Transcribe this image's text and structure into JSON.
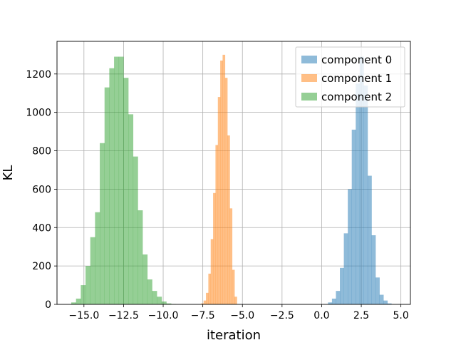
{
  "chart_data": {
    "type": "histogram",
    "title": "",
    "xlabel": "iteration",
    "ylabel": "KL",
    "xlim": [
      -16.7,
      5.6
    ],
    "ylim": [
      0,
      1370
    ],
    "grid": true,
    "legend_position": "top-right",
    "x_ticks": [
      -15.0,
      -12.5,
      -10.0,
      -7.5,
      -5.0,
      -2.5,
      0.0,
      2.5,
      5.0
    ],
    "x_tick_labels": [
      "−15.0",
      "−12.5",
      "−10.0",
      "−7.5",
      "−5.0",
      "−2.5",
      "0.0",
      "2.5",
      "5.0"
    ],
    "y_ticks": [
      0,
      200,
      400,
      600,
      800,
      1000,
      1200
    ],
    "y_tick_labels": [
      "0",
      "200",
      "400",
      "600",
      "800",
      "1000",
      "1200"
    ],
    "series": [
      {
        "name": "component 0",
        "color": "#1f77b4",
        "bins": [
          0.4,
          0.65,
          0.9,
          1.15,
          1.4,
          1.65,
          1.9,
          2.15,
          2.4,
          2.65,
          2.9,
          3.15,
          3.4,
          3.65,
          3.9,
          4.15,
          4.4
        ],
        "counts": [
          10,
          30,
          70,
          190,
          370,
          600,
          910,
          1150,
          1290,
          1140,
          670,
          360,
          140,
          50,
          20,
          5
        ]
      },
      {
        "name": "component 1",
        "color": "#ff7f0e",
        "bins": [
          -7.6,
          -7.45,
          -7.3,
          -7.15,
          -7.0,
          -6.85,
          -6.7,
          -6.55,
          -6.4,
          -6.25,
          -6.1,
          -5.95,
          -5.8,
          -5.65,
          -5.5,
          -5.35
        ],
        "counts": [
          5,
          20,
          60,
          160,
          340,
          580,
          830,
          1080,
          1270,
          1300,
          1180,
          880,
          500,
          180,
          40
        ]
      },
      {
        "name": "component 2",
        "color": "#2ca02c",
        "bins": [
          -15.8,
          -15.5,
          -15.2,
          -14.9,
          -14.6,
          -14.3,
          -14.0,
          -13.7,
          -13.4,
          -13.1,
          -12.8,
          -12.5,
          -12.2,
          -11.9,
          -11.6,
          -11.3,
          -11.0,
          -10.7,
          -10.4,
          -10.1,
          -9.8,
          -9.5,
          -9.2
        ],
        "counts": [
          10,
          30,
          100,
          200,
          350,
          480,
          840,
          1130,
          1230,
          1290,
          1290,
          1180,
          990,
          770,
          490,
          260,
          130,
          70,
          40,
          15,
          5,
          2
        ]
      }
    ]
  }
}
